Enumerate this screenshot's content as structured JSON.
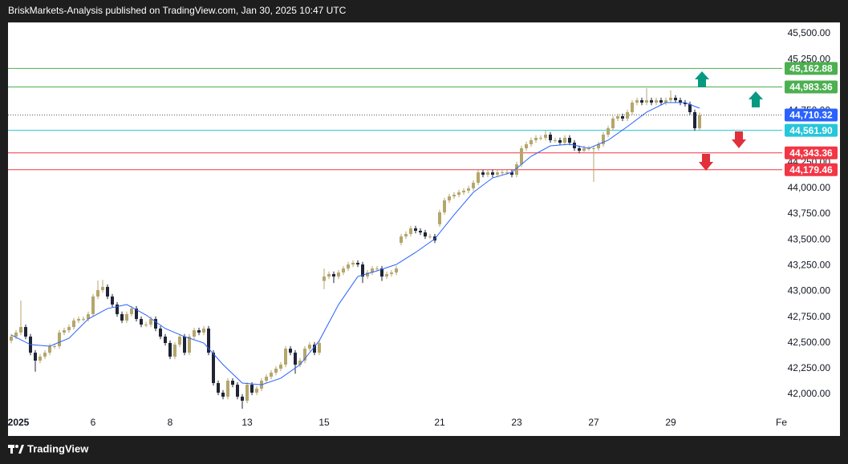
{
  "chart_data": {
    "type": "candlestick",
    "title": "BriskMarkets-Analysis published on TradingView.com, Jan 30, 2025 10:47 UTC",
    "brand": "TradingView",
    "up_color": "#b5a66c",
    "down_color": "#1f2436",
    "x": [
      0,
      1,
      2,
      3,
      4,
      5,
      6,
      7,
      8,
      9,
      10,
      11,
      12,
      13,
      14,
      15,
      16,
      17,
      18,
      19,
      20,
      21,
      22,
      23,
      24,
      25,
      26,
      27,
      28,
      29,
      30,
      31,
      32,
      33,
      34,
      35,
      36,
      37,
      38,
      39,
      40,
      41,
      42,
      43,
      44,
      45,
      46,
      47,
      48,
      49,
      50,
      51,
      52,
      53,
      54,
      55,
      56,
      57,
      58,
      59,
      60,
      61,
      62,
      63,
      64,
      65,
      66,
      67,
      68,
      69,
      70,
      71,
      72,
      73,
      74,
      75,
      76,
      77,
      78,
      79,
      80,
      81,
      82,
      83,
      84,
      85,
      86,
      87,
      88,
      89,
      90,
      91,
      92,
      93,
      94,
      95,
      96,
      97,
      98,
      99,
      100,
      101,
      102,
      103,
      104,
      105,
      106,
      107,
      108,
      109,
      110,
      111,
      112,
      113,
      114,
      115,
      116,
      117,
      118,
      119,
      120,
      121,
      122,
      123,
      124,
      125,
      126,
      127,
      128,
      129,
      130,
      131,
      132,
      133,
      134,
      135,
      136,
      137,
      138,
      139,
      140,
      141,
      142,
      143
    ],
    "open": [
      42520,
      42560,
      42599,
      42653,
      42560,
      42404,
      42327,
      42366,
      42404,
      42467,
      42467,
      42599,
      42622,
      42653,
      42716,
      42731,
      42731,
      42778,
      42949,
      43011,
      43042,
      42949,
      42871,
      42778,
      42716,
      42778,
      42832,
      42731,
      42677,
      42677,
      42731,
      42638,
      42560,
      42498,
      42366,
      42482,
      42560,
      42404,
      42560,
      42622,
      42599,
      42638,
      42404,
      42109,
      42016,
      41977,
      42132,
      42093,
      41977,
      41938,
      42093,
      42016,
      42055,
      42132,
      42171,
      42210,
      42249,
      42288,
      42443,
      42404,
      42288,
      42327,
      42443,
      42482,
      42404,
      43100,
      43143,
      43167,
      43143,
      43182,
      43221,
      43260,
      43276,
      43260,
      43143,
      43182,
      43221,
      43221,
      43143,
      43167,
      43182,
      43470,
      43532,
      43556,
      43610,
      43587,
      43571,
      43532,
      43532,
      43650,
      43766,
      43882,
      43921,
      43937,
      43960,
      43976,
      43999,
      44053,
      44154,
      44131,
      44154,
      44131,
      44154,
      44154,
      44154,
      44131,
      44232,
      44388,
      44427,
      44466,
      44489,
      44489,
      44520,
      44466,
      44466,
      44442,
      44489,
      44442,
      44388,
      44364,
      44388,
      44388,
      44388,
      44427,
      44520,
      44582,
      44676,
      44699,
      44676,
      44738,
      44831,
      44854,
      44831,
      44854,
      44831,
      44854,
      44831,
      44854,
      44878,
      44854,
      44831,
      44816,
      44738,
      44582
    ],
    "high": [
      42585,
      42624,
      42910,
      42678,
      42585,
      42429,
      42391,
      42429,
      42492,
      42492,
      42624,
      42647,
      42678,
      42741,
      42756,
      42756,
      42803,
      42974,
      43104,
      43110,
      43067,
      42974,
      42896,
      42803,
      42803,
      42857,
      42857,
      42756,
      42702,
      42756,
      42756,
      42663,
      42585,
      42523,
      42507,
      42585,
      42585,
      42585,
      42647,
      42647,
      42663,
      42663,
      42429,
      42134,
      42041,
      42157,
      42157,
      42118,
      42002,
      42118,
      42118,
      42080,
      42157,
      42196,
      42235,
      42274,
      42313,
      42468,
      42468,
      42429,
      42352,
      42468,
      42507,
      42507,
      42523,
      43220,
      43192,
      43192,
      43207,
      43246,
      43285,
      43301,
      43301,
      43285,
      43207,
      43246,
      43246,
      43246,
      43192,
      43207,
      43246,
      43557,
      43581,
      43635,
      43635,
      43612,
      43596,
      43557,
      43557,
      43791,
      43907,
      43946,
      43962,
      43985,
      44001,
      44024,
      44078,
      44179,
      44179,
      44179,
      44179,
      44179,
      44179,
      44179,
      44179,
      44257,
      44413,
      44452,
      44491,
      44514,
      44514,
      44560,
      44545,
      44491,
      44491,
      44514,
      44514,
      44467,
      44413,
      44413,
      44413,
      44413,
      44452,
      44545,
      44607,
      44701,
      44724,
      44724,
      44763,
      44856,
      44879,
      44879,
      44971,
      44879,
      44879,
      44879,
      44879,
      44950,
      44903,
      44879,
      44856,
      44841,
      44763,
      44735
    ],
    "low": [
      42495,
      42535,
      42574,
      42535,
      42379,
      42220,
      42302,
      42341,
      42379,
      42442,
      42442,
      42574,
      42597,
      42628,
      42691,
      42706,
      42706,
      42753,
      42924,
      42986,
      42924,
      42846,
      42753,
      42691,
      42691,
      42753,
      42706,
      42652,
      42652,
      42652,
      42613,
      42535,
      42473,
      42341,
      42341,
      42457,
      42379,
      42379,
      42535,
      42574,
      42574,
      42379,
      42084,
      41991,
      41952,
      41952,
      42068,
      41952,
      41860,
      41913,
      41991,
      41991,
      42030,
      42107,
      42146,
      42185,
      42224,
      42263,
      42379,
      42200,
      42263,
      42302,
      42418,
      42379,
      42379,
      43020,
      43118,
      43080,
      43118,
      43157,
      43196,
      43235,
      43235,
      43080,
      43118,
      43157,
      43196,
      43100,
      43118,
      43142,
      43157,
      43445,
      43507,
      43531,
      43562,
      43546,
      43507,
      43507,
      43468,
      43625,
      43741,
      43857,
      43896,
      43912,
      43935,
      43951,
      43974,
      44028,
      44106,
      44106,
      44106,
      44106,
      44129,
      44129,
      44106,
      44106,
      44207,
      44363,
      44402,
      44441,
      44464,
      44464,
      44441,
      44441,
      44417,
      44417,
      44417,
      44363,
      44339,
      44339,
      44363,
      44061,
      44363,
      44402,
      44495,
      44557,
      44651,
      44651,
      44651,
      44713,
      44806,
      44806,
      44806,
      44806,
      44806,
      44806,
      44806,
      44829,
      44829,
      44806,
      44791,
      44713,
      44557,
      44557
    ],
    "close": [
      42560,
      42599,
      42653,
      42560,
      42404,
      42327,
      42366,
      42404,
      42467,
      42467,
      42599,
      42622,
      42653,
      42716,
      42731,
      42731,
      42778,
      42949,
      43011,
      43042,
      42949,
      42871,
      42778,
      42716,
      42778,
      42832,
      42731,
      42677,
      42677,
      42731,
      42638,
      42560,
      42498,
      42366,
      42482,
      42560,
      42404,
      42560,
      42622,
      42599,
      42638,
      42404,
      42109,
      42016,
      41977,
      42132,
      42093,
      41977,
      41938,
      42093,
      42016,
      42055,
      42132,
      42171,
      42210,
      42249,
      42288,
      42443,
      42404,
      42288,
      42327,
      42443,
      42482,
      42404,
      42498,
      43143,
      43167,
      43143,
      43182,
      43221,
      43260,
      43276,
      43260,
      43143,
      43182,
      43221,
      43221,
      43143,
      43167,
      43182,
      43221,
      43532,
      43556,
      43610,
      43587,
      43571,
      43532,
      43532,
      43493,
      43766,
      43882,
      43921,
      43937,
      43960,
      43976,
      43999,
      44053,
      44154,
      44131,
      44154,
      44131,
      44154,
      44154,
      44154,
      44131,
      44232,
      44388,
      44427,
      44466,
      44489,
      44489,
      44520,
      44466,
      44466,
      44442,
      44489,
      44442,
      44388,
      44364,
      44388,
      44388,
      44388,
      44427,
      44520,
      44582,
      44676,
      44699,
      44676,
      44738,
      44831,
      44854,
      44831,
      44854,
      44831,
      44854,
      44831,
      44854,
      44878,
      44854,
      44831,
      44816,
      44738,
      44582,
      44710
    ],
    "ma": {
      "color": "#2962ff",
      "x": [
        0,
        4,
        8,
        12,
        16,
        20,
        24,
        28,
        32,
        36,
        40,
        44,
        48,
        52,
        56,
        60,
        64,
        68,
        72,
        76,
        80,
        84,
        88,
        92,
        96,
        100,
        104,
        108,
        112,
        116,
        120,
        124,
        128,
        132,
        136,
        140,
        143
      ],
      "values": [
        42576,
        42482,
        42467,
        42544,
        42731,
        42832,
        42871,
        42770,
        42638,
        42560,
        42498,
        42288,
        42109,
        42093,
        42156,
        42288,
        42521,
        42871,
        43143,
        43198,
        43260,
        43377,
        43509,
        43742,
        43960,
        44100,
        44154,
        44310,
        44411,
        44427,
        44388,
        44466,
        44598,
        44738,
        44831,
        44831,
        44777
      ]
    },
    "levels": [
      {
        "value": 45162.88,
        "label": "45,162.88",
        "color": "#4caf50",
        "line_style": "solid"
      },
      {
        "value": 44983.36,
        "label": "44,983.36",
        "color": "#4caf50",
        "line_style": "solid"
      },
      {
        "value": 44710.32,
        "label": "44,710.32",
        "color": "#2962ff",
        "line_style": "dotted"
      },
      {
        "value": 44561.9,
        "label": "44,561.90",
        "color": "#26c6da",
        "line_style": "solid"
      },
      {
        "value": 44343.36,
        "label": "44,343.36",
        "color": "#f23645",
        "line_style": "solid"
      },
      {
        "value": 44179.46,
        "label": "44,179.46",
        "color": "#f23645",
        "line_style": "solid"
      }
    ],
    "ylim": [
      41798,
      45609
    ],
    "yticks": [
      {
        "value": 42000,
        "label": "42,000.00"
      },
      {
        "value": 42250,
        "label": "42,250.00"
      },
      {
        "value": 42500,
        "label": "42,500.00"
      },
      {
        "value": 42750,
        "label": "42,750.00"
      },
      {
        "value": 43000,
        "label": "43,000.00"
      },
      {
        "value": 43250,
        "label": "43,250.00"
      },
      {
        "value": 43500,
        "label": "43,500.00"
      },
      {
        "value": 43750,
        "label": "43,750.00"
      },
      {
        "value": 44000,
        "label": "44,000.00"
      },
      {
        "value": 44250,
        "label": "44,250.00"
      },
      {
        "value": 44750,
        "label": "44,750.00"
      },
      {
        "value": 45250,
        "label": "45,250.00"
      },
      {
        "value": 45500,
        "label": "45,500.00"
      }
    ],
    "xticks": [
      {
        "value": 1.5,
        "label": "2025"
      },
      {
        "value": 17,
        "label": "6"
      },
      {
        "value": 33,
        "label": "8"
      },
      {
        "value": 49,
        "label": "13"
      },
      {
        "value": 65,
        "label": "15"
      },
      {
        "value": 89,
        "label": "21"
      },
      {
        "value": 105,
        "label": "23"
      },
      {
        "value": 121,
        "label": "27"
      },
      {
        "value": 137,
        "label": "29"
      },
      {
        "value": 160,
        "label": "Fe"
      }
    ],
    "grid": false
  }
}
